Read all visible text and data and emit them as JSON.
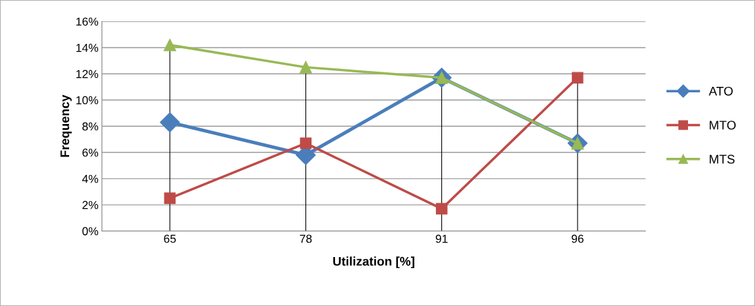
{
  "chart_data": {
    "type": "line",
    "xlabel": "Utilization [%]",
    "ylabel": "Frequency",
    "categories": [
      "65",
      "78",
      "91",
      "96"
    ],
    "series": [
      {
        "name": "ATO",
        "color": "#4a7ebb",
        "marker": "diamond",
        "values": [
          8.3,
          5.8,
          11.7,
          6.7
        ]
      },
      {
        "name": "MTO",
        "color": "#be4b48",
        "marker": "square",
        "values": [
          2.5,
          6.7,
          1.7,
          11.7
        ]
      },
      {
        "name": "MTS",
        "color": "#98b954",
        "marker": "triangle",
        "values": [
          14.2,
          12.5,
          11.7,
          6.7
        ]
      }
    ],
    "ylim": [
      0,
      16
    ],
    "yticks": [
      {
        "value": 0,
        "label": "0%"
      },
      {
        "value": 2,
        "label": "2%"
      },
      {
        "value": 4,
        "label": "4%"
      },
      {
        "value": 6,
        "label": "6%"
      },
      {
        "value": 8,
        "label": "8%"
      },
      {
        "value": 10,
        "label": "10%"
      },
      {
        "value": 12,
        "label": "12%"
      },
      {
        "value": 14,
        "label": "14%"
      },
      {
        "value": 16,
        "label": "16%"
      }
    ],
    "ref_lines": [
      {
        "axis": "x",
        "value": "65",
        "color": "#000000"
      },
      {
        "axis": "x",
        "value": "78",
        "color": "#000000"
      },
      {
        "axis": "x",
        "value": "91",
        "color": "#000000"
      },
      {
        "axis": "x",
        "value": "96",
        "color": "#000000"
      }
    ],
    "grid": "y",
    "legend": "right",
    "line_style": "solid"
  }
}
